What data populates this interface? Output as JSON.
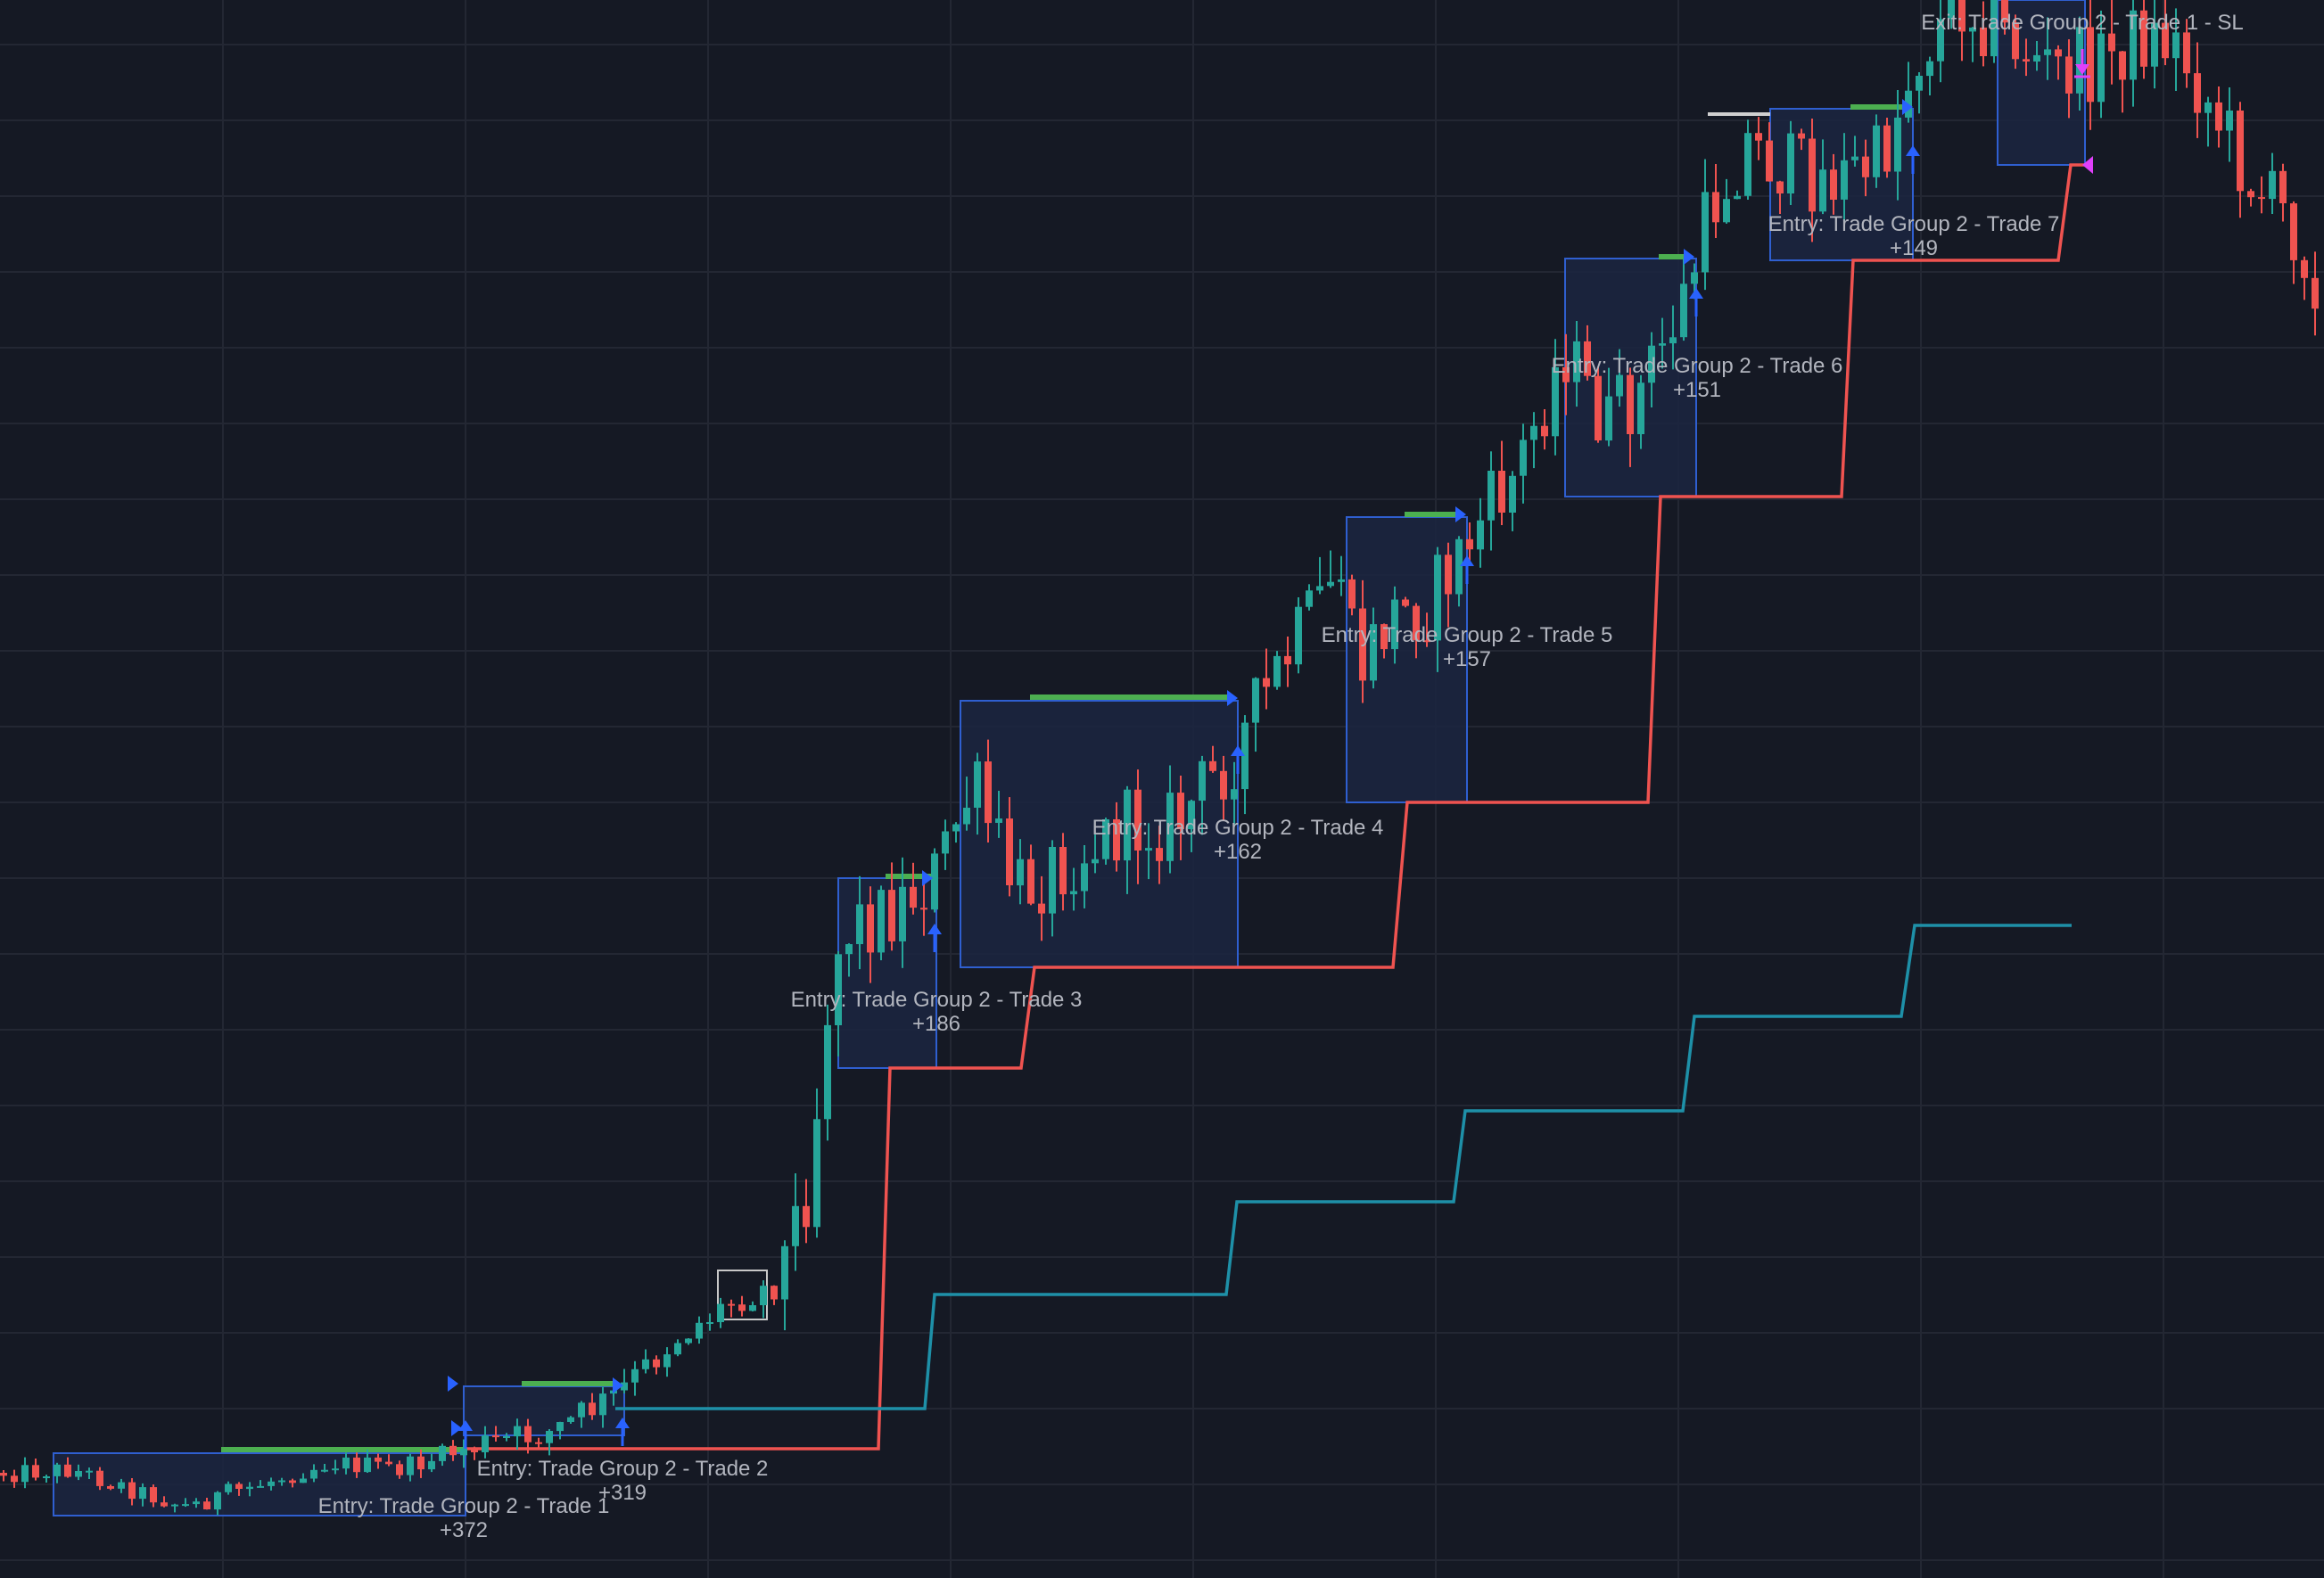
{
  "colors": {
    "background": "#151924",
    "grid": "#232733",
    "bull": "#26a69a",
    "bear": "#ef5350",
    "trade_box_fill": "#1b2641",
    "trade_box_stroke": "#2f5fd0",
    "entry_arrow": "#2962ff",
    "take_profit_line": "#4caf50",
    "trailing_stop": "#ef5350",
    "step_line": "#1e90a8",
    "label_text": "#b2b5be",
    "exit_marker": "#e040fb",
    "highlight_box": "#c8c8c8"
  },
  "chart_data": {
    "type": "candlestick",
    "grid": true,
    "axes_visible": false,
    "annotations": [
      {
        "text": "Entry: Trade Group 2 - Trade 1",
        "value": "+372"
      },
      {
        "text": "Entry: Trade Group 2 - Trade 2",
        "value": "+319"
      },
      {
        "text": "Entry: Trade Group 2 - Trade 3",
        "value": "+186"
      },
      {
        "text": "Entry: Trade Group 2 - Trade 4",
        "value": "+162"
      },
      {
        "text": "Entry: Trade Group 2 - Trade 5",
        "value": "+157"
      },
      {
        "text": "Entry: Trade Group 2 - Trade 6",
        "value": "+151"
      },
      {
        "text": "Entry: Trade Group 2 - Trade 7",
        "value": "+149"
      },
      {
        "text": "Exit: Trade Group 2 - Trade 1 - SL",
        "value": ""
      }
    ],
    "series": [
      {
        "type": "step-line",
        "color": "#ef5350"
      },
      {
        "type": "step-line",
        "color": "#1e90a8"
      }
    ]
  }
}
